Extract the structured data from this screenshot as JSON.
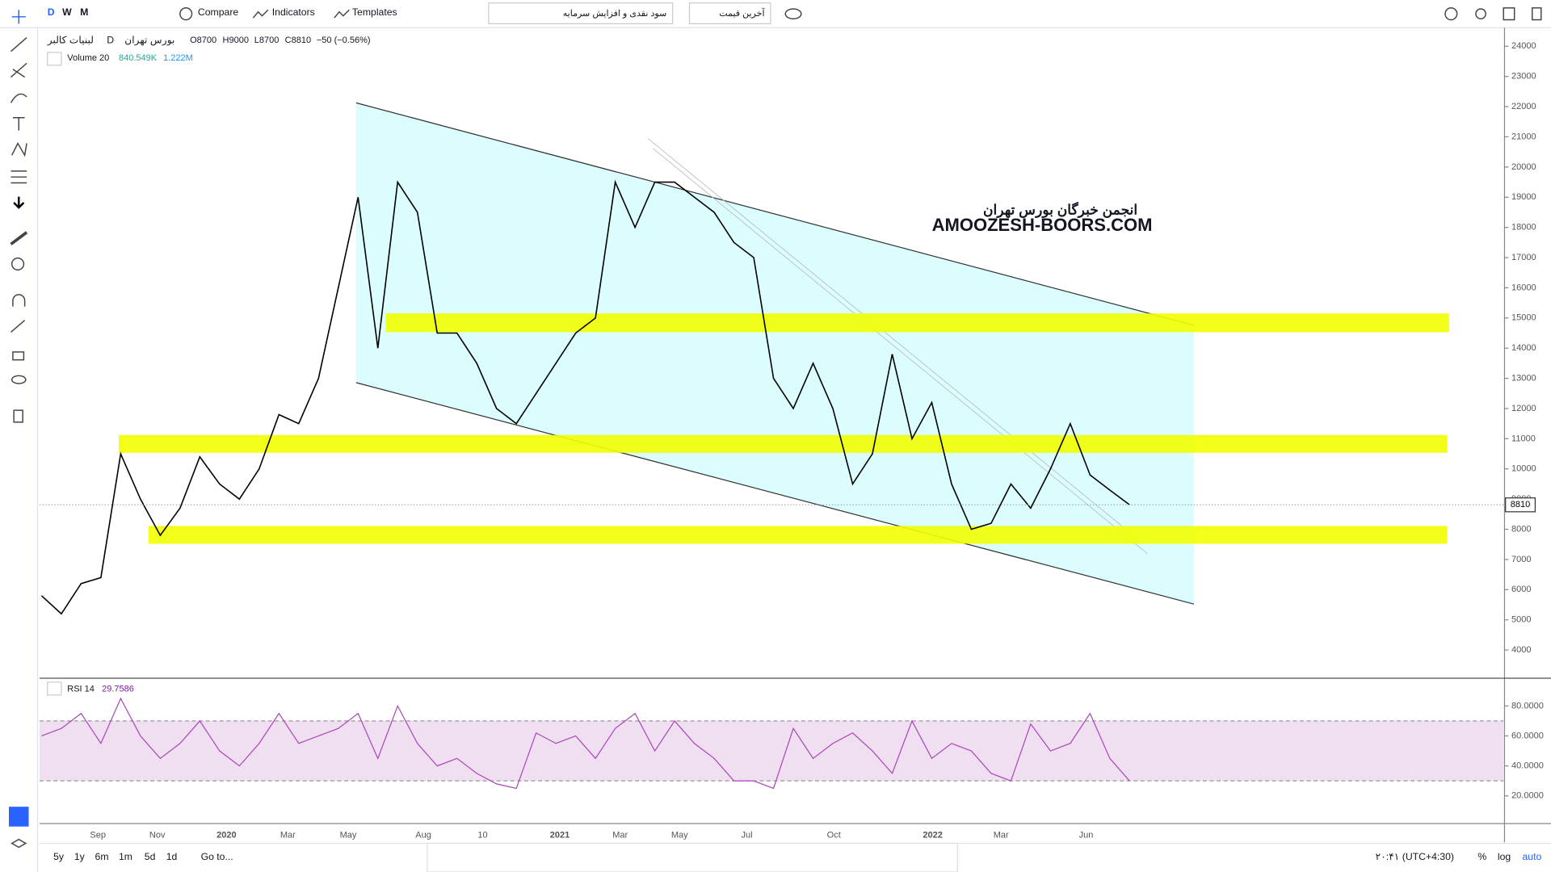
{
  "top_toolbar": {
    "intervals": [
      "D",
      "W",
      "M"
    ],
    "compare": "Compare",
    "indicators": "Indicators",
    "templates": "Templates",
    "dividend_menu": "سود نقدی و افزایش سرمایه",
    "price_menu": "آخرین قیمت"
  },
  "legend": {
    "symbol": "لبنیات کالبر",
    "interval": "D",
    "exchange": "بورس تهران",
    "open": "O8700",
    "high": "H9000",
    "low": "L8700",
    "close": "C8810",
    "change": "−50 (−0.56%)"
  },
  "volume_legend": {
    "name": "Volume 20",
    "value": "840.549K",
    "ma": "1.222M"
  },
  "watermark": {
    "line1": "انجمن خبرگان بورس تهران",
    "line2": "AMOOZESH-BOORS.COM"
  },
  "price_chart": {
    "ylim": [
      3100,
      24550
    ],
    "yticks": [
      4000,
      5000,
      6000,
      7000,
      8000,
      9000,
      10000,
      11000,
      12000,
      13000,
      14000,
      15000,
      16000,
      17000,
      18000,
      19000,
      20000,
      21000,
      22000,
      23000,
      24000
    ],
    "last_price": 8810,
    "closes": [
      5800,
      5200,
      6200,
      6400,
      10500,
      9000,
      7800,
      8700,
      10400,
      9500,
      9000,
      10000,
      11800,
      11500,
      13000,
      16000,
      19000,
      14000,
      19500,
      18500,
      14500,
      14500,
      13500,
      12000,
      11500,
      12500,
      13500,
      14500,
      15000,
      19500,
      18000,
      19500,
      19500,
      19000,
      18500,
      17500,
      17000,
      13000,
      12000,
      13500,
      12000,
      9500,
      10500,
      13800,
      11000,
      12200,
      9500,
      8000,
      8200,
      9500,
      8700,
      10000,
      11500,
      9800,
      9300,
      8810
    ]
  },
  "rsi": {
    "name": "RSI 14",
    "value": "29.7586",
    "ylim": [
      2.2,
      98.5
    ],
    "yticks": [
      {
        "value": 20,
        "label": "20.0000"
      },
      {
        "value": 40,
        "label": "40.0000"
      },
      {
        "value": 60,
        "label": "60.0000"
      },
      {
        "value": 80,
        "label": "80.0000"
      }
    ],
    "band": [
      30,
      70
    ],
    "values": [
      60,
      65,
      75,
      55,
      85,
      60,
      45,
      55,
      70,
      50,
      40,
      55,
      75,
      55,
      60,
      65,
      75,
      45,
      80,
      55,
      40,
      45,
      35,
      28,
      25,
      62,
      55,
      60,
      45,
      65,
      75,
      50,
      70,
      55,
      45,
      30,
      30,
      25,
      65,
      45,
      55,
      62,
      50,
      35,
      70,
      45,
      55,
      50,
      35,
      30,
      68,
      50,
      55,
      75,
      45,
      30
    ]
  },
  "time_axis": {
    "labels": [
      "Sep",
      "Nov",
      "2020",
      "Mar",
      "May",
      "Aug",
      "10",
      "2021",
      "Mar",
      "May",
      "Jul",
      "Oct",
      "2022",
      "Mar",
      "Jun"
    ]
  },
  "bottom_bar": {
    "ranges": [
      "5y",
      "1y",
      "6m",
      "1m",
      "5d",
      "1d"
    ],
    "goto": "Go to...",
    "clock": "۲۰:۴۱ (UTC+4:30)",
    "percent": "%",
    "log": "log",
    "auto": "auto"
  }
}
